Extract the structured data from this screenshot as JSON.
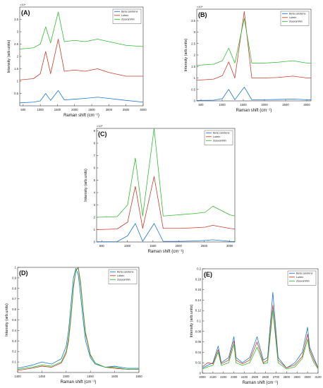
{
  "figure": {
    "panels": [
      "A",
      "B",
      "C",
      "D",
      "E"
    ]
  },
  "colors": {
    "beta_carotene": "#1f77d4",
    "lutein": "#c8402d",
    "zeaxanthin": "#33bb33",
    "axis": "#333333",
    "background": "#ffffff"
  },
  "chart_data": [
    {
      "id": "A",
      "panel_label": "(A)",
      "type": "line",
      "title": "",
      "xlabel": "Raman shift (cm⁻¹)",
      "ylabel": "Intensity (arb.units)",
      "exponent_label": "×10⁴",
      "xlim": [
        400,
        4000
      ],
      "ylim": [
        0,
        4
      ],
      "xticks": [
        500,
        1000,
        1500,
        2000,
        2500,
        3000,
        3500,
        4000
      ],
      "yticks": [
        0.5,
        1,
        1.5,
        2,
        2.5,
        3,
        3.5
      ],
      "legend_position": "top-right",
      "series": [
        {
          "name": "Beta carotene",
          "color": "#1f77d4",
          "x": [
            400,
            800,
            1000,
            1156,
            1300,
            1523,
            1700,
            2000,
            2300,
            2670,
            3000,
            3500,
            4000
          ],
          "y": [
            0.12,
            0.15,
            0.2,
            0.5,
            0.22,
            0.62,
            0.24,
            0.27,
            0.3,
            0.35,
            0.3,
            0.22,
            0.15
          ]
        },
        {
          "name": "Lutein",
          "color": "#c8402d",
          "x": [
            400,
            800,
            1000,
            1156,
            1300,
            1523,
            1700,
            2000,
            2300,
            2670,
            3000,
            3500,
            4000
          ],
          "y": [
            1.05,
            1.1,
            1.3,
            2.2,
            1.3,
            2.7,
            1.4,
            1.45,
            1.4,
            1.5,
            1.35,
            1.2,
            1.2
          ]
        },
        {
          "name": "Zeaxanthin",
          "color": "#33bb33",
          "x": [
            400,
            800,
            1000,
            1156,
            1300,
            1523,
            1700,
            2000,
            2300,
            2670,
            3000,
            3500,
            4000
          ],
          "y": [
            2.3,
            2.35,
            2.5,
            3.2,
            2.55,
            3.8,
            2.6,
            2.65,
            2.6,
            2.7,
            2.6,
            2.45,
            2.4
          ]
        }
      ]
    },
    {
      "id": "B",
      "panel_label": "(B)",
      "type": "line",
      "title": "",
      "xlabel": "Raman shift (cm⁻¹)",
      "ylabel": "Intensity (arb.units)",
      "exponent_label": "×10⁴",
      "xlim": [
        400,
        3100
      ],
      "ylim": [
        0,
        4
      ],
      "xticks": [
        500,
        1000,
        1500,
        2000,
        2500,
        3000
      ],
      "yticks": [
        0,
        0.5,
        1,
        1.5,
        2,
        2.5,
        3,
        3.5
      ],
      "legend_position": "top-right",
      "series": [
        {
          "name": "Beta carotene",
          "color": "#1f77d4",
          "x": [
            400,
            800,
            1005,
            1156,
            1300,
            1523,
            1700,
            2000,
            2300,
            2670,
            3000,
            3100
          ],
          "y": [
            0.02,
            0.03,
            0.1,
            0.5,
            0.05,
            0.6,
            0.05,
            0.05,
            0.06,
            0.08,
            0.05,
            0.04
          ]
        },
        {
          "name": "Lutein",
          "color": "#c8402d",
          "x": [
            400,
            800,
            1005,
            1156,
            1300,
            1523,
            1700,
            2000,
            2300,
            2670,
            3000,
            3100
          ],
          "y": [
            0.9,
            0.95,
            1.1,
            1.7,
            1.0,
            3.9,
            1.0,
            1.0,
            1.02,
            1.08,
            1.0,
            1.0
          ]
        },
        {
          "name": "Zeaxanthin",
          "color": "#33bb33",
          "x": [
            400,
            800,
            1005,
            1156,
            1300,
            1523,
            1700,
            2000,
            2300,
            2670,
            3000,
            3100
          ],
          "y": [
            1.55,
            1.6,
            1.75,
            2.3,
            1.65,
            3.6,
            1.65,
            1.65,
            1.68,
            1.75,
            1.65,
            1.65
          ]
        }
      ]
    },
    {
      "id": "C",
      "panel_label": "(C)",
      "type": "line",
      "title": "",
      "xlabel": "Raman shift (cm⁻¹)",
      "ylabel": "Intensity (arb.units)",
      "exponent_label": "×10⁵",
      "xlim": [
        400,
        3100
      ],
      "ylim": [
        0,
        9.2
      ],
      "xticks": [
        500,
        1000,
        1500,
        2000,
        2500,
        3000
      ],
      "yticks": [
        0,
        1,
        2,
        3,
        4,
        5,
        6,
        7,
        8,
        9
      ],
      "legend_position": "top-right",
      "series": [
        {
          "name": "Beta carotene",
          "color": "#1f77d4",
          "x": [
            400,
            800,
            1005,
            1156,
            1300,
            1523,
            1700,
            2000,
            2300,
            2520,
            2670,
            3000,
            3100
          ],
          "y": [
            0.02,
            0.03,
            0.5,
            1.5,
            0.05,
            1.5,
            0.05,
            0.05,
            0.08,
            0.12,
            0.18,
            0.05,
            0.04
          ]
        },
        {
          "name": "Lutein",
          "color": "#c8402d",
          "x": [
            400,
            800,
            1005,
            1156,
            1300,
            1523,
            1700,
            2000,
            2300,
            2520,
            2670,
            3000,
            3100
          ],
          "y": [
            1.0,
            1.05,
            1.6,
            4.5,
            1.1,
            5.3,
            1.1,
            1.1,
            1.15,
            1.2,
            1.35,
            1.1,
            1.05
          ]
        },
        {
          "name": "Zeaxanthin",
          "color": "#33bb33",
          "x": [
            400,
            800,
            1005,
            1156,
            1300,
            1523,
            1700,
            2000,
            2300,
            2520,
            2670,
            3000,
            3100
          ],
          "y": [
            2.0,
            2.05,
            3.0,
            6.8,
            2.1,
            9.2,
            2.1,
            2.2,
            2.3,
            2.4,
            2.9,
            2.2,
            2.1
          ]
        }
      ]
    },
    {
      "id": "D",
      "panel_label": "(D)",
      "type": "line",
      "title": "",
      "xlabel": "Raman shift (cm⁻¹)",
      "ylabel": "Intensity (arb.units)",
      "exponent_label": "",
      "xlim": [
        1400,
        1650
      ],
      "ylim": [
        0,
        1
      ],
      "xticks": [
        1400,
        1450,
        1500,
        1550,
        1600,
        1650
      ],
      "yticks": [
        0.1,
        0.2,
        0.3,
        0.4,
        0.5,
        0.6,
        0.7,
        0.8,
        0.9,
        1
      ],
      "legend_position": "top-right",
      "series": [
        {
          "name": "Beta carotene",
          "color": "#1f77d4",
          "x": [
            1400,
            1430,
            1450,
            1470,
            1490,
            1500,
            1505,
            1510,
            1515,
            1520,
            1525,
            1530,
            1535,
            1540,
            1550,
            1560,
            1580,
            1600,
            1625,
            1650
          ],
          "y": [
            0.04,
            0.07,
            0.1,
            0.08,
            0.13,
            0.25,
            0.4,
            0.65,
            0.9,
            0.99,
            0.93,
            0.72,
            0.5,
            0.3,
            0.14,
            0.08,
            0.05,
            0.06,
            0.04,
            0.04
          ]
        },
        {
          "name": "Lutein",
          "color": "#c8402d",
          "x": [
            1400,
            1430,
            1450,
            1470,
            1490,
            1500,
            1505,
            1510,
            1515,
            1520,
            1525,
            1530,
            1535,
            1540,
            1550,
            1560,
            1580,
            1600,
            1625,
            1650
          ],
          "y": [
            0.02,
            0.04,
            0.06,
            0.05,
            0.09,
            0.18,
            0.3,
            0.52,
            0.8,
            0.97,
            1.0,
            0.85,
            0.6,
            0.38,
            0.17,
            0.09,
            0.05,
            0.04,
            0.03,
            0.03
          ]
        },
        {
          "name": "Zeaxanthin",
          "color": "#33bb33",
          "x": [
            1400,
            1430,
            1450,
            1470,
            1490,
            1500,
            1505,
            1510,
            1515,
            1520,
            1525,
            1530,
            1535,
            1540,
            1550,
            1560,
            1580,
            1600,
            1625,
            1650
          ],
          "y": [
            0.03,
            0.05,
            0.07,
            0.06,
            0.1,
            0.2,
            0.33,
            0.55,
            0.82,
            0.98,
            0.99,
            0.82,
            0.58,
            0.36,
            0.16,
            0.09,
            0.05,
            0.05,
            0.03,
            0.03
          ]
        }
      ]
    },
    {
      "id": "E",
      "panel_label": "(E)",
      "type": "line",
      "title": "",
      "xlabel": "Raman shift (cm⁻¹)",
      "ylabel": "Intensity (arb.units)",
      "exponent_label": "",
      "xlim": [
        2000,
        3100
      ],
      "ylim": [
        0,
        0.2
      ],
      "xticks": [
        2000,
        2100,
        2200,
        2300,
        2400,
        2500,
        2600,
        2700,
        2800,
        2900,
        3000,
        3100
      ],
      "yticks": [
        0,
        0.02,
        0.04,
        0.06,
        0.08,
        0.1,
        0.12,
        0.14,
        0.16,
        0.18,
        0.2
      ],
      "legend_position": "top-right",
      "series": [
        {
          "name": "Beta carotene",
          "color": "#1f77d4",
          "x": [
            2000,
            2050,
            2100,
            2150,
            2180,
            2250,
            2300,
            2320,
            2380,
            2450,
            2520,
            2580,
            2620,
            2670,
            2720,
            2800,
            2880,
            2950,
            3000,
            3020,
            3060,
            3100
          ],
          "y": [
            0.01,
            0.015,
            0.02,
            0.052,
            0.02,
            0.03,
            0.07,
            0.03,
            0.02,
            0.03,
            0.07,
            0.025,
            0.03,
            0.155,
            0.03,
            0.01,
            0.02,
            0.04,
            0.088,
            0.05,
            0.03,
            0.01
          ]
        },
        {
          "name": "Lutein",
          "color": "#c8402d",
          "x": [
            2000,
            2050,
            2100,
            2150,
            2180,
            2250,
            2300,
            2320,
            2380,
            2450,
            2520,
            2580,
            2620,
            2670,
            2720,
            2800,
            2880,
            2950,
            3000,
            3020,
            3060,
            3100
          ],
          "y": [
            0.012,
            0.02,
            0.018,
            0.045,
            0.018,
            0.025,
            0.062,
            0.025,
            0.018,
            0.025,
            0.06,
            0.02,
            0.025,
            0.13,
            0.025,
            0.01,
            0.016,
            0.032,
            0.075,
            0.045,
            0.025,
            0.01
          ]
        },
        {
          "name": "Zeaxanthin",
          "color": "#33bb33",
          "x": [
            2000,
            2050,
            2100,
            2150,
            2180,
            2250,
            2300,
            2320,
            2380,
            2450,
            2520,
            2580,
            2620,
            2670,
            2720,
            2800,
            2880,
            2950,
            3000,
            3020,
            3060,
            3100
          ],
          "y": [
            0.008,
            0.012,
            0.015,
            0.04,
            0.015,
            0.02,
            0.055,
            0.02,
            0.015,
            0.02,
            0.05,
            0.018,
            0.02,
            0.12,
            0.02,
            0.008,
            0.012,
            0.028,
            0.065,
            0.04,
            0.02,
            0.008
          ]
        }
      ]
    }
  ]
}
